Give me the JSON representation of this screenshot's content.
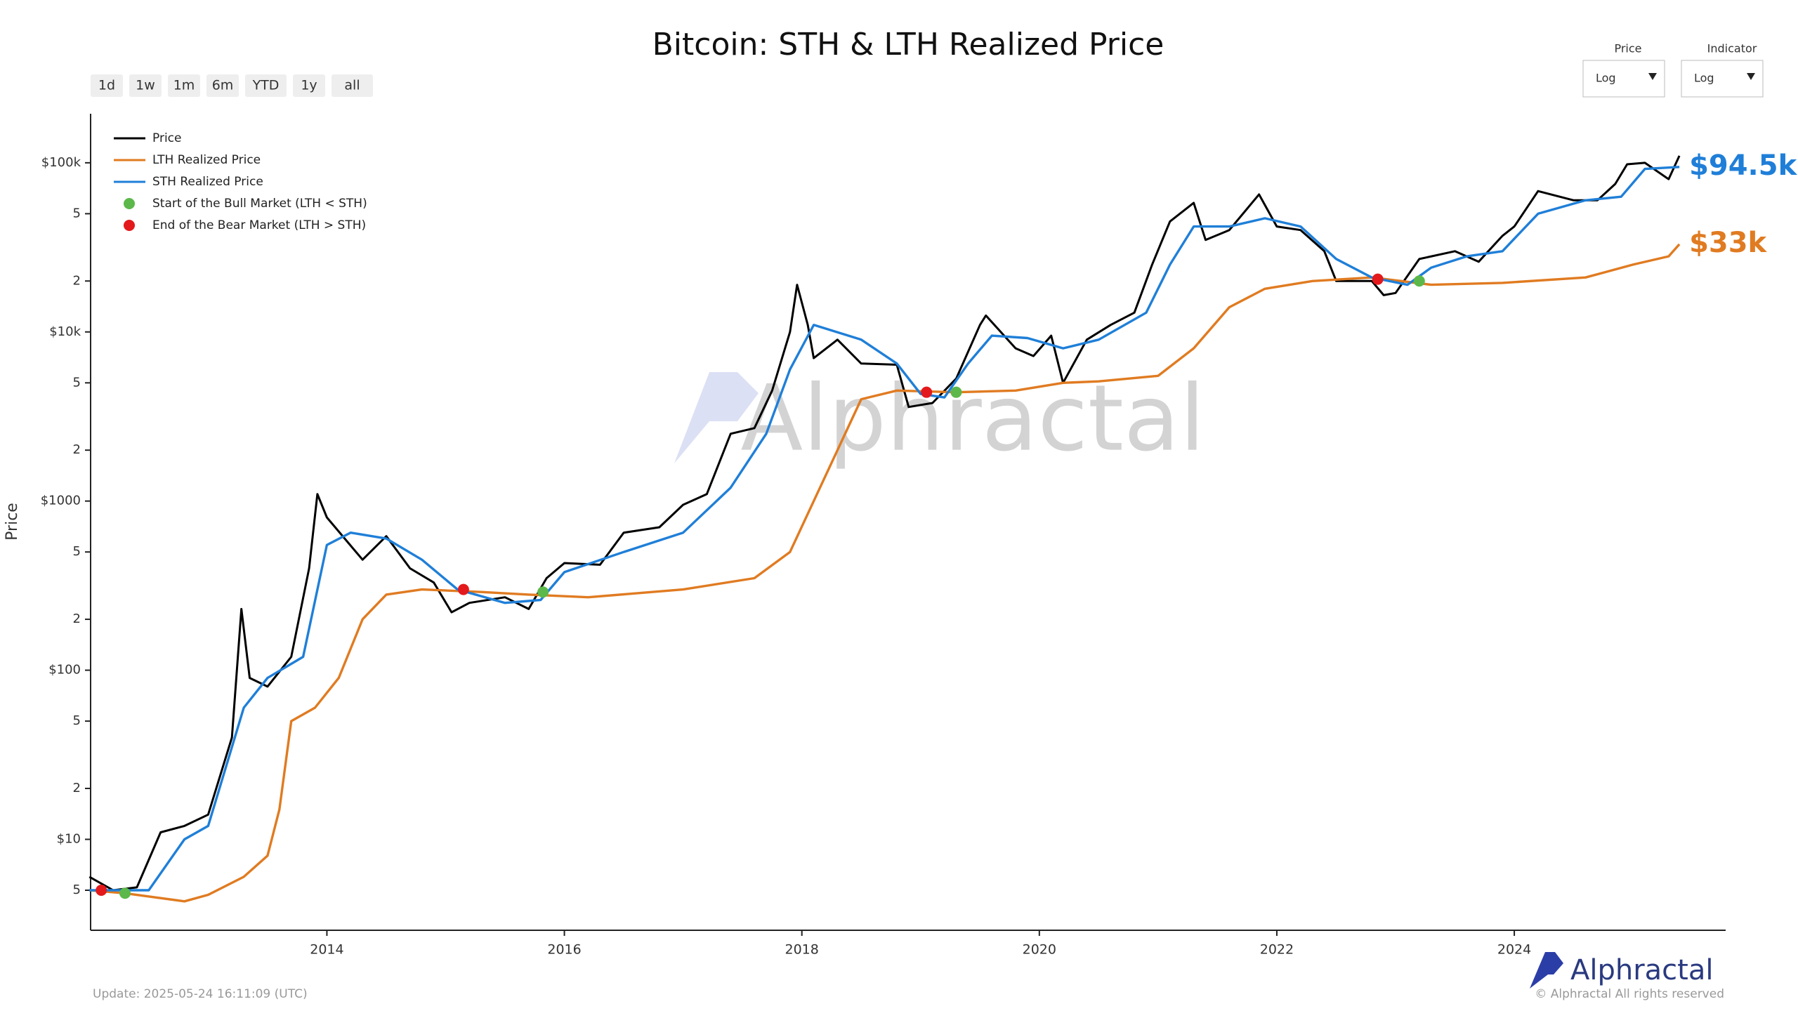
{
  "chart_data": {
    "type": "line",
    "title": "Bitcoin: STH & LTH Realized Price",
    "y_label": "Price",
    "log_y": true,
    "legend": "upper left",
    "xlim": [
      2012.01,
      2025.78
    ],
    "xticks": [
      2014,
      2016,
      2018,
      2020,
      2022,
      2024
    ],
    "ylim": [
      2.9,
      195000
    ],
    "yticks": [
      5,
      {
        "value": 10,
        "label": "$10"
      },
      {
        "value": 20,
        "label": "2"
      },
      {
        "value": 50,
        "label": "5"
      },
      {
        "value": 100,
        "label": "$100"
      },
      {
        "value": 200,
        "label": "2"
      },
      {
        "value": 500,
        "label": "5"
      },
      {
        "value": 1000,
        "label": "$1000"
      },
      {
        "value": 2000,
        "label": "2"
      },
      {
        "value": 5000,
        "label": "5"
      },
      {
        "value": 10000,
        "label": "$10k"
      },
      {
        "value": 20000,
        "label": "2"
      },
      {
        "value": 50000,
        "label": "5"
      },
      {
        "value": 100000,
        "label": "$100k"
      }
    ],
    "series": [
      {
        "name": "Price",
        "type": "line",
        "color": "#000000",
        "x": [
          2012.0,
          2012.2,
          2012.4,
          2012.6,
          2012.8,
          2013.0,
          2013.2,
          2013.28,
          2013.35,
          2013.5,
          2013.7,
          2013.85,
          2013.92,
          2014.0,
          2014.15,
          2014.3,
          2014.5,
          2014.7,
          2014.9,
          2015.05,
          2015.2,
          2015.5,
          2015.7,
          2015.85,
          2016.0,
          2016.3,
          2016.5,
          2016.8,
          2017.0,
          2017.2,
          2017.4,
          2017.6,
          2017.75,
          2017.9,
          2017.96,
          2018.05,
          2018.1,
          2018.3,
          2018.5,
          2018.8,
          2018.9,
          2019.1,
          2019.3,
          2019.5,
          2019.55,
          2019.8,
          2019.95,
          2020.1,
          2020.2,
          2020.4,
          2020.6,
          2020.8,
          2020.95,
          2021.1,
          2021.3,
          2021.4,
          2021.6,
          2021.85,
          2022.0,
          2022.2,
          2022.4,
          2022.5,
          2022.8,
          2022.9,
          2023.0,
          2023.2,
          2023.5,
          2023.7,
          2023.9,
          2024.0,
          2024.2,
          2024.5,
          2024.7,
          2024.85,
          2024.95,
          2025.1,
          2025.3,
          2025.39
        ],
        "values": [
          6,
          5,
          5.2,
          11,
          12,
          14,
          40,
          230,
          90,
          80,
          120,
          400,
          1100,
          800,
          600,
          450,
          620,
          400,
          330,
          220,
          250,
          270,
          230,
          350,
          430,
          420,
          650,
          700,
          950,
          1100,
          2500,
          2700,
          4500,
          10000,
          19000,
          11000,
          7000,
          9000,
          6500,
          6400,
          3600,
          3800,
          5300,
          11000,
          12500,
          8000,
          7200,
          9500,
          5000,
          9000,
          11000,
          13000,
          25000,
          45000,
          58000,
          35000,
          40000,
          65000,
          42000,
          40000,
          30000,
          20000,
          20000,
          16500,
          17000,
          27000,
          30000,
          26000,
          37000,
          42000,
          68000,
          60000,
          60000,
          75000,
          98000,
          100000,
          80000,
          110000
        ]
      },
      {
        "name": "LTH Realized Price",
        "type": "line",
        "color": "#e07b21",
        "end_label": "$33k",
        "x": [
          2012.0,
          2012.3,
          2012.8,
          2013.0,
          2013.3,
          2013.5,
          2013.6,
          2013.7,
          2013.9,
          2014.1,
          2014.3,
          2014.5,
          2014.8,
          2015.3,
          2015.7,
          2016.2,
          2017.0,
          2017.6,
          2017.9,
          2018.1,
          2018.3,
          2018.5,
          2018.8,
          2019.3,
          2019.8,
          2020.2,
          2020.5,
          2021.0,
          2021.3,
          2021.6,
          2021.9,
          2022.3,
          2022.8,
          2023.3,
          2023.9,
          2024.6,
          2025.0,
          2025.3,
          2025.39
        ],
        "values": [
          5,
          4.8,
          4.3,
          4.7,
          6,
          8,
          15,
          50,
          60,
          90,
          200,
          280,
          300,
          290,
          280,
          270,
          300,
          350,
          500,
          1000,
          2000,
          4000,
          4500,
          4400,
          4500,
          5000,
          5100,
          5500,
          8000,
          14000,
          18000,
          20000,
          21000,
          19000,
          19500,
          21000,
          25000,
          28000,
          33000
        ]
      },
      {
        "name": "STH Realized Price",
        "type": "line",
        "color": "#1f7fd8",
        "end_label": "$94.5k",
        "x": [
          2012.0,
          2012.5,
          2012.8,
          2013.0,
          2013.3,
          2013.5,
          2013.8,
          2014.0,
          2014.2,
          2014.5,
          2014.8,
          2015.1,
          2015.5,
          2015.8,
          2016.0,
          2016.5,
          2017.0,
          2017.4,
          2017.7,
          2017.9,
          2018.1,
          2018.5,
          2018.8,
          2019.0,
          2019.2,
          2019.4,
          2019.6,
          2019.9,
          2020.2,
          2020.5,
          2020.9,
          2021.1,
          2021.3,
          2021.6,
          2021.9,
          2022.2,
          2022.5,
          2022.8,
          2023.1,
          2023.3,
          2023.6,
          2023.9,
          2024.2,
          2024.6,
          2024.9,
          2025.1,
          2025.39
        ],
        "values": [
          5,
          5,
          10,
          12,
          60,
          90,
          120,
          550,
          650,
          600,
          450,
          300,
          250,
          260,
          380,
          500,
          650,
          1200,
          2500,
          6000,
          11000,
          9000,
          6500,
          4300,
          4100,
          6500,
          9500,
          9200,
          8000,
          9000,
          13000,
          25000,
          42000,
          42000,
          47000,
          42000,
          27000,
          21000,
          19000,
          24000,
          28000,
          30000,
          50000,
          60000,
          63000,
          92000,
          94500
        ]
      },
      {
        "name": "Start of the Bull Market (LTH < STH)",
        "type": "scatter",
        "color": "#5cb84a",
        "x": [
          2012.3,
          2015.82,
          2019.3,
          2023.2
        ],
        "values": [
          4.8,
          290,
          4400,
          20000
        ]
      },
      {
        "name": "End of the Bear Market (LTH > STH)",
        "type": "scatter",
        "color": "#e3191c",
        "x": [
          2012.1,
          2015.15,
          2019.05,
          2022.85
        ],
        "values": [
          5,
          300,
          4400,
          20500
        ]
      }
    ]
  },
  "ui": {
    "ranges": [
      "1d",
      "1w",
      "1m",
      "6m",
      "YTD",
      "1y",
      "all"
    ],
    "price_scale": {
      "label": "Price",
      "value": "Log"
    },
    "indicator_scale": {
      "label": "Indicator",
      "value": "Log"
    },
    "watermark": "Alphractal",
    "brand": "Alphractal",
    "copyright": "© Alphractal All rights reserved",
    "update": "Update: 2025-05-24 16:11:09 (UTC)"
  }
}
